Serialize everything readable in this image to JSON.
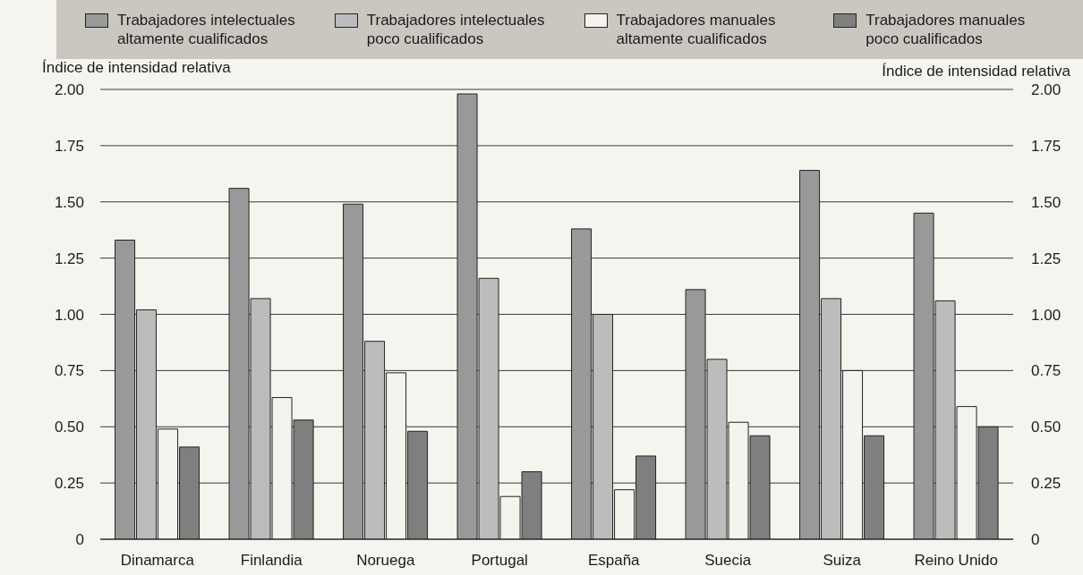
{
  "chart_data": {
    "type": "bar",
    "ylabel": "Índice de intensidad relativa",
    "y2label": "Índice de intensidad relativa",
    "categories": [
      "Dinamarca",
      "Finlandia",
      "Noruega",
      "Portugal",
      "España",
      "Suecia",
      "Suiza",
      "Reino Unido"
    ],
    "series": [
      {
        "name": "Trabajadores intelectuales altamente cualificados",
        "color": "#999999",
        "values": [
          1.33,
          1.56,
          1.49,
          1.98,
          1.38,
          1.11,
          1.64,
          1.45
        ]
      },
      {
        "name": "Trabajadores intelectuales poco cualificados",
        "color": "#bcbcbc",
        "values": [
          1.02,
          1.07,
          0.88,
          1.16,
          1.0,
          0.8,
          1.07,
          1.06
        ]
      },
      {
        "name": "Trabajadores manuales altamente cualificados",
        "color": "#f4f3ee",
        "values": [
          0.49,
          0.63,
          0.74,
          0.19,
          0.22,
          0.52,
          0.75,
          0.59
        ]
      },
      {
        "name": "Trabajadores manuales poco cualificados",
        "color": "#7f7f7f",
        "values": [
          0.41,
          0.53,
          0.48,
          0.3,
          0.37,
          0.46,
          0.46,
          0.5
        ]
      }
    ],
    "ylim": [
      0,
      2
    ],
    "yticks": [
      0,
      0.25,
      {
        "value": 0.5,
        "label": "0.50"
      },
      0.75,
      {
        "value": 1,
        "label": "1.00"
      },
      1.25,
      {
        "value": 1.5,
        "label": "1.50"
      },
      1.75,
      {
        "value": 2,
        "label": "2.00"
      }
    ],
    "y2lim": [
      0,
      2
    ],
    "y2ticks": [
      0,
      0.25,
      {
        "value": 0.5,
        "label": "0.50"
      },
      0.75,
      {
        "value": 1,
        "label": "1.00"
      },
      1.25,
      {
        "value": 1.5,
        "label": "1.50"
      },
      1.75,
      {
        "value": 2,
        "label": "2.00"
      }
    ],
    "grid": "y",
    "legend": "top"
  }
}
